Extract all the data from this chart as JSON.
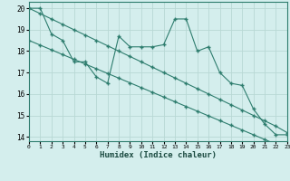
{
  "line1_x": [
    0,
    1,
    2,
    3,
    4,
    5,
    6,
    7,
    8,
    9,
    10,
    11,
    12,
    13,
    14,
    15,
    16,
    17,
    18,
    19,
    20,
    21,
    22,
    23
  ],
  "line1_y": [
    20.0,
    20.0,
    18.8,
    18.5,
    17.5,
    17.5,
    16.8,
    16.5,
    18.7,
    18.2,
    18.2,
    18.2,
    18.3,
    19.5,
    19.5,
    18.0,
    18.2,
    17.0,
    16.5,
    16.4,
    15.3,
    14.6,
    14.1,
    14.1
  ],
  "line2_x": [
    0,
    1,
    2,
    3,
    4,
    5,
    6,
    7,
    8,
    9,
    10,
    11,
    12,
    13,
    14,
    15,
    16,
    17,
    18,
    19,
    20,
    21,
    22,
    23
  ],
  "line2_y": [
    20.0,
    19.75,
    19.5,
    19.25,
    19.0,
    18.75,
    18.5,
    18.25,
    18.0,
    17.75,
    17.5,
    17.25,
    17.0,
    16.75,
    16.5,
    16.25,
    16.0,
    15.75,
    15.5,
    15.25,
    15.0,
    14.75,
    14.5,
    14.2
  ],
  "line3_x": [
    0,
    1,
    2,
    3,
    4,
    5,
    6,
    7,
    8,
    9,
    10,
    11,
    12,
    13,
    14,
    15,
    16,
    17,
    18,
    19,
    20,
    21,
    22,
    23
  ],
  "line3_y": [
    18.5,
    18.28,
    18.06,
    17.84,
    17.62,
    17.4,
    17.18,
    16.96,
    16.74,
    16.52,
    16.3,
    16.08,
    15.86,
    15.64,
    15.42,
    15.2,
    14.98,
    14.76,
    14.54,
    14.32,
    14.1,
    13.88,
    13.66,
    13.5
  ],
  "line_color": "#2e7d6e",
  "bg_color": "#d4eeed",
  "grid_color": "#b8d8d4",
  "xlabel": "Humidex (Indice chaleur)",
  "xlim": [
    0,
    23
  ],
  "ylim": [
    13.8,
    20.3
  ],
  "yticks": [
    14,
    15,
    16,
    17,
    18,
    19,
    20
  ],
  "xticks": [
    0,
    1,
    2,
    3,
    4,
    5,
    6,
    7,
    8,
    9,
    10,
    11,
    12,
    13,
    14,
    15,
    16,
    17,
    18,
    19,
    20,
    21,
    22,
    23
  ]
}
